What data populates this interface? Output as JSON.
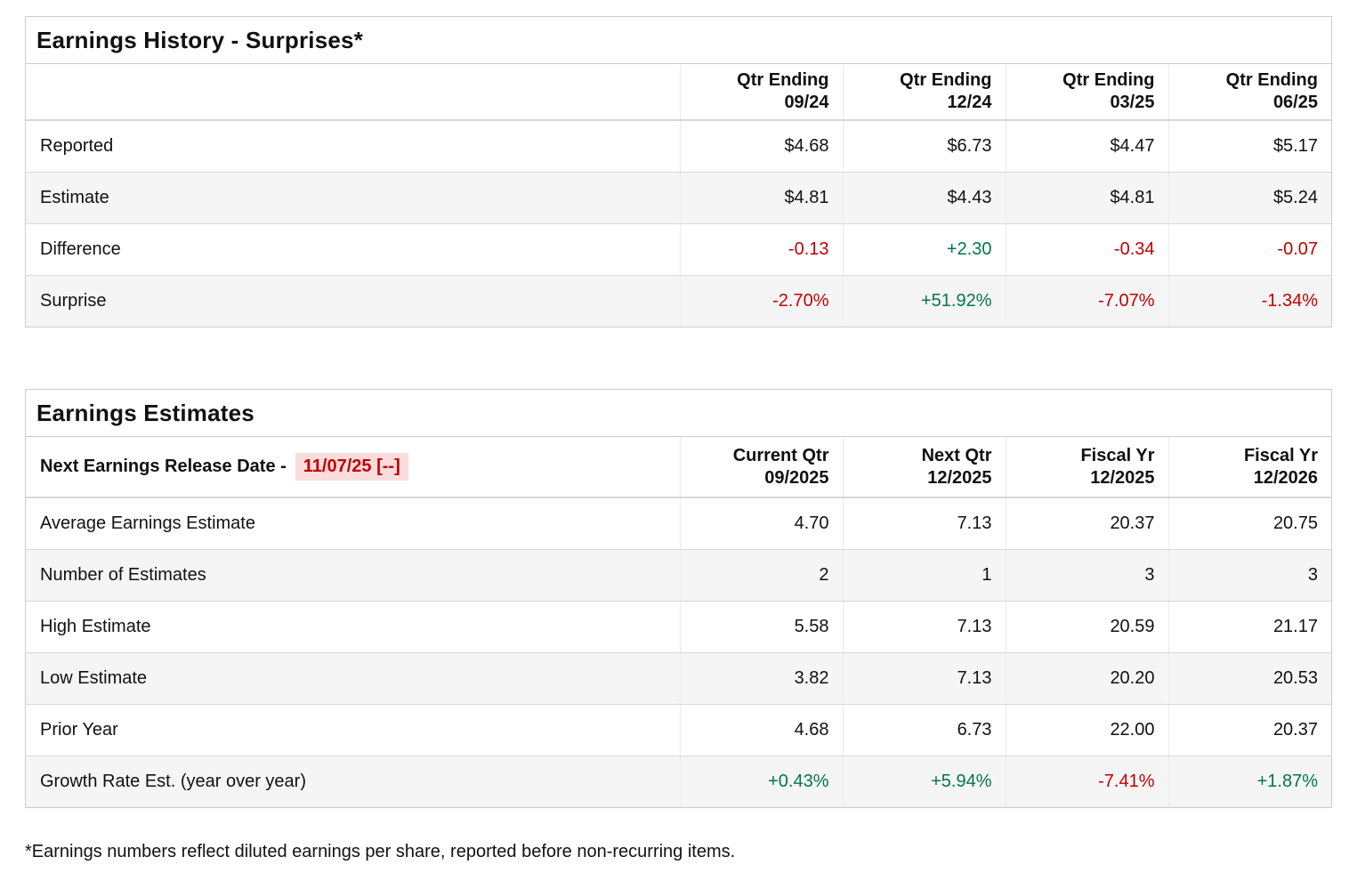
{
  "colors": {
    "positive": "#00774b",
    "negative": "#c00000",
    "highlight_bg": "#fbdcdc",
    "stripe": "#f5f5f5",
    "border": "#cccccc"
  },
  "earnings_history": {
    "title": "Earnings History - Surprises*",
    "columns": [
      "Qtr Ending\n09/24",
      "Qtr Ending\n12/24",
      "Qtr Ending\n03/25",
      "Qtr Ending\n06/25"
    ],
    "rows": [
      {
        "label": "Reported",
        "values": [
          "$4.68",
          "$6.73",
          "$4.47",
          "$5.17"
        ]
      },
      {
        "label": "Estimate",
        "values": [
          "$4.81",
          "$4.43",
          "$4.81",
          "$5.24"
        ]
      },
      {
        "label": "Difference",
        "values": [
          "-0.13",
          "+2.30",
          "-0.34",
          "-0.07"
        ]
      },
      {
        "label": "Surprise",
        "values": [
          "-2.70%",
          "+51.92%",
          "-7.07%",
          "-1.34%"
        ]
      }
    ]
  },
  "earnings_estimates": {
    "title": "Earnings Estimates",
    "release_date_label": "Next Earnings Release Date -",
    "release_date_value": "11/07/25 [--]",
    "columns": [
      "Current Qtr\n09/2025",
      "Next Qtr\n12/2025",
      "Fiscal Yr\n12/2025",
      "Fiscal Yr\n12/2026"
    ],
    "rows": [
      {
        "label": "Average Earnings Estimate",
        "values": [
          "4.70",
          "7.13",
          "20.37",
          "20.75"
        ]
      },
      {
        "label": "Number of Estimates",
        "values": [
          "2",
          "1",
          "3",
          "3"
        ]
      },
      {
        "label": "High Estimate",
        "values": [
          "5.58",
          "7.13",
          "20.59",
          "21.17"
        ]
      },
      {
        "label": "Low Estimate",
        "values": [
          "3.82",
          "7.13",
          "20.20",
          "20.53"
        ]
      },
      {
        "label": "Prior Year",
        "values": [
          "4.68",
          "6.73",
          "22.00",
          "20.37"
        ]
      },
      {
        "label": "Growth Rate Est. (year over year)",
        "values": [
          "+0.43%",
          "+5.94%",
          "-7.41%",
          "+1.87%"
        ]
      }
    ]
  },
  "footnote": "*Earnings numbers reflect diluted earnings per share, reported before non-recurring items."
}
